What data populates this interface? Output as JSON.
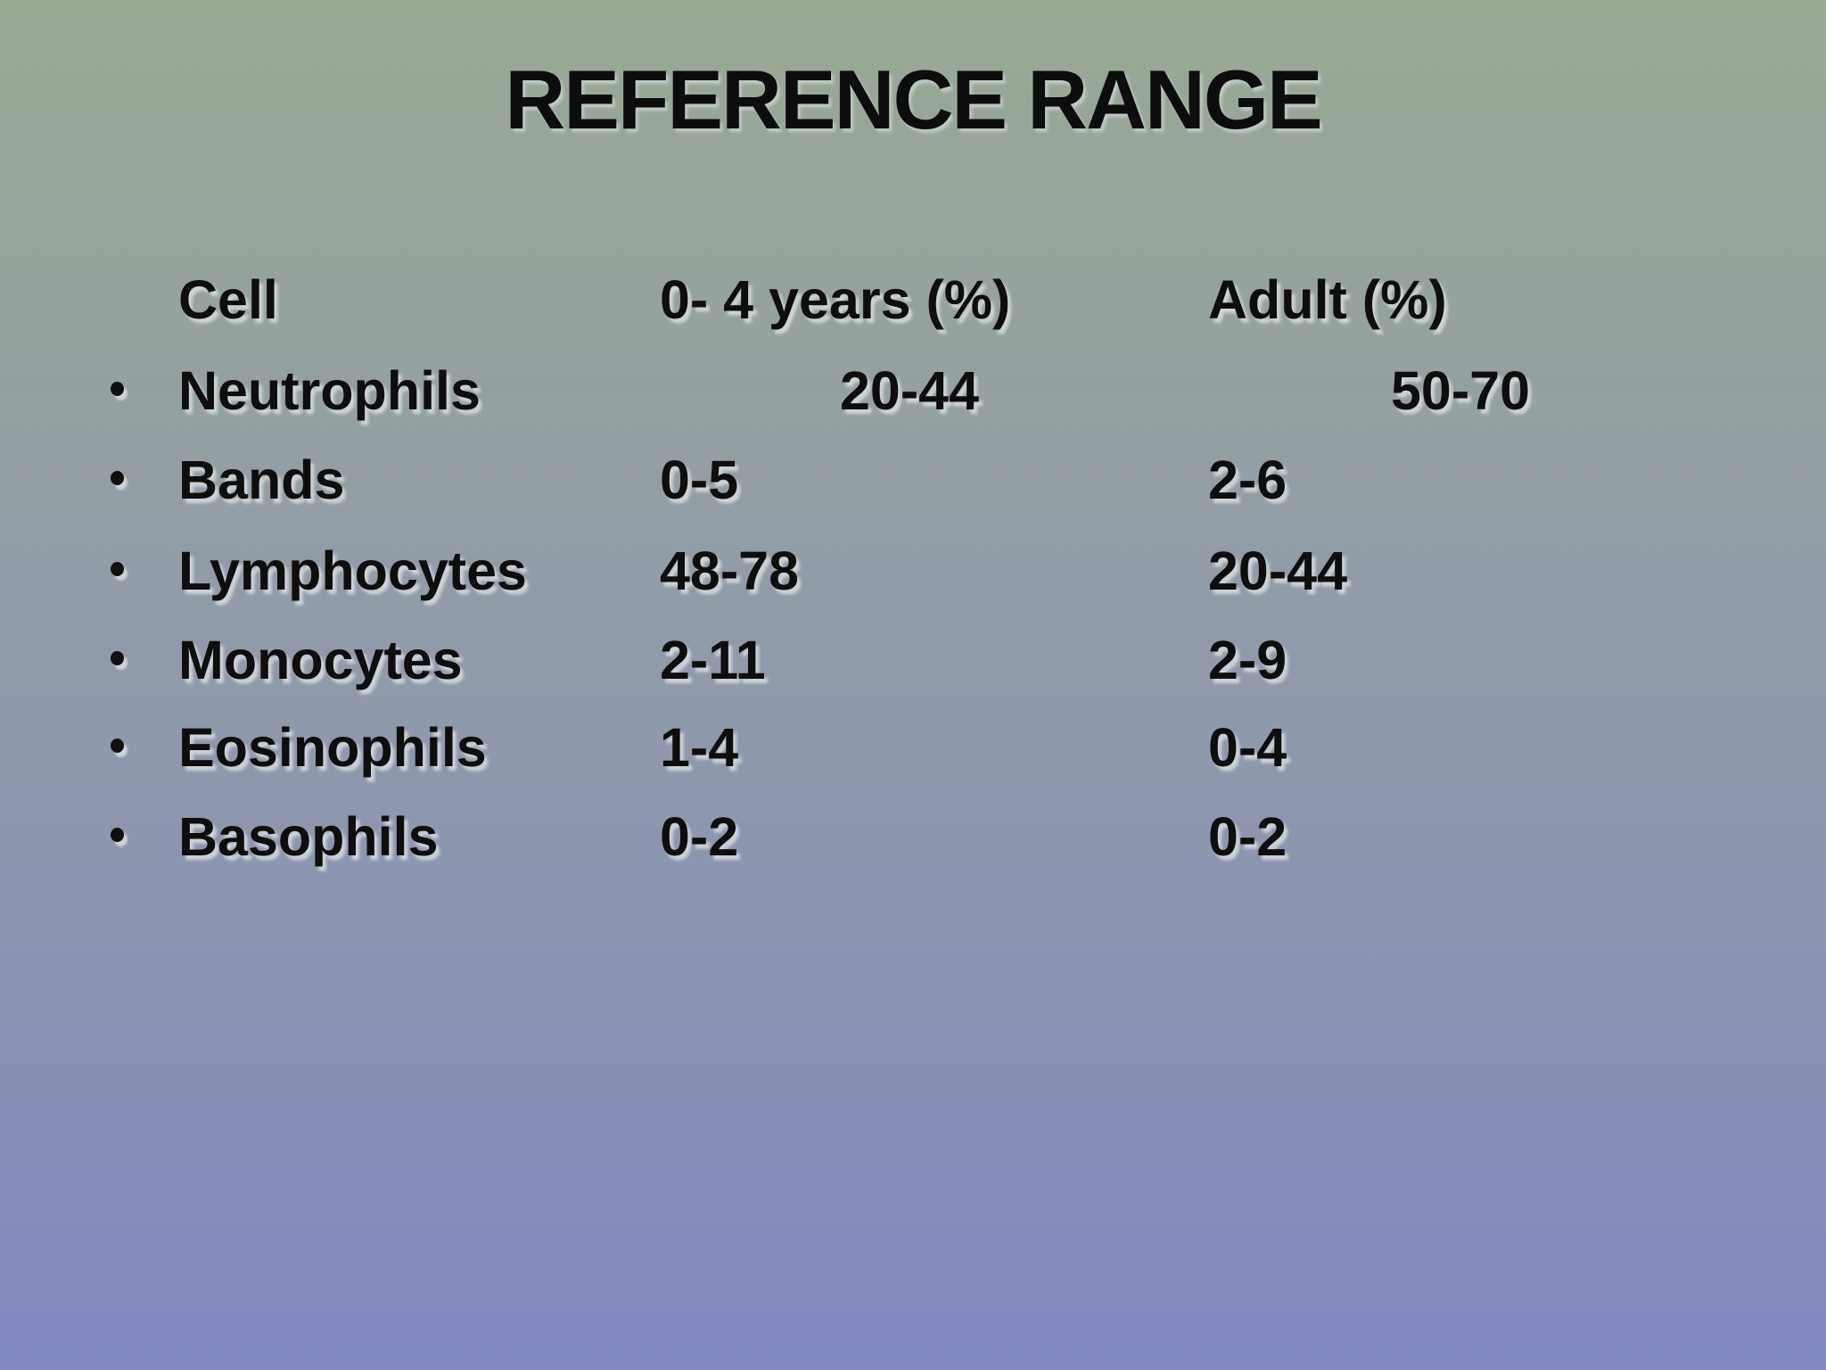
{
  "slide": {
    "title": "REFERENCE RANGE",
    "colors": {
      "background_top": "#98a993",
      "background_middle": "#919bab",
      "background_bottom": "#8287c1",
      "text": "#0e0e0e",
      "text_shadow": "#d8dde0"
    },
    "table": {
      "headers": {
        "cell": "Cell",
        "age04": "0- 4 years (%)",
        "adult": "Adult (%)"
      },
      "rows": [
        {
          "label": "Neutrophils",
          "age04": "20-44",
          "adult": "50-70"
        },
        {
          "label": "Bands",
          "age04": "0-5",
          "adult": "2-6"
        },
        {
          "label": "Lymphocytes",
          "age04": "48-78",
          "adult": "20-44"
        },
        {
          "label": "Monocytes",
          "age04": "2-11",
          "adult": "2-9"
        },
        {
          "label": "Eosinophils",
          "age04": "1-4",
          "adult": "0-4"
        },
        {
          "label": "Basophils",
          "age04": "0-2",
          "adult": "0-2"
        }
      ]
    }
  }
}
